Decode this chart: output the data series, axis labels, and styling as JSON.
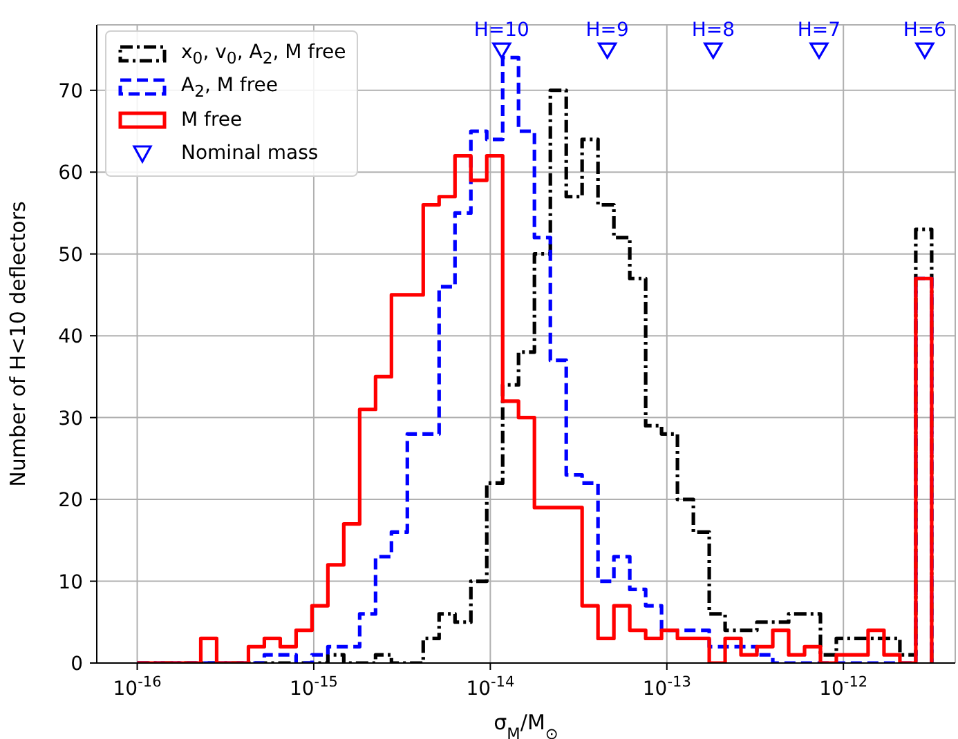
{
  "chart_data": {
    "type": "histogram",
    "xlabel": "σ$_{M}$/M$_{⊙}$",
    "ylabel": "Number of H<10 deflectors",
    "log": "x",
    "grid": true,
    "legend": "top left",
    "xlim": [
      5.9e-17,
      4.3e-12
    ],
    "xticks": [
      {
        "value": 1e-16,
        "label": "10$^{-16}$"
      },
      {
        "value": 1e-15,
        "label": "10$^{-15}$"
      },
      {
        "value": 1e-14,
        "label": "10$^{-14}$"
      },
      {
        "value": 1e-13,
        "label": "10$^{-13}$"
      },
      {
        "value": 1e-12,
        "label": "10$^{-12}$"
      }
    ],
    "ylim": [
      0,
      78
    ],
    "yticks": [
      0,
      10,
      20,
      30,
      40,
      50,
      60,
      70
    ],
    "bins": [
      1e-16,
      1.23e-16,
      1.514e-16,
      1.862e-16,
      2.291e-16,
      2.818e-16,
      3.467e-16,
      4.266e-16,
      5.248e-16,
      6.457e-16,
      7.943e-16,
      9.772e-16,
      1.202e-15,
      1.479e-15,
      1.82e-15,
      2.239e-15,
      2.754e-15,
      3.388e-15,
      4.169e-15,
      5.129e-15,
      6.31e-15,
      7.762e-15,
      9.55e-15,
      1.175e-14,
      1.445e-14,
      1.778e-14,
      2.188e-14,
      2.692e-14,
      3.311e-14,
      4.074e-14,
      5.012e-14,
      6.166e-14,
      7.586e-14,
      9.333e-14,
      1.148e-13,
      1.413e-13,
      1.738e-13,
      2.138e-13,
      2.63e-13,
      3.236e-13,
      3.981e-13,
      4.898e-13,
      6.026e-13,
      7.413e-13,
      9.12e-13,
      1.122e-12,
      1.38e-12,
      1.698e-12,
      2.089e-12,
      2.57e-12,
      3.162e-12
    ],
    "series": [
      {
        "name": "x$_{0}$, v$_{0}$, A$_{2}$, M free",
        "color": "#000000",
        "line_style": "dashdot",
        "values": [
          0,
          0,
          0,
          0,
          0,
          0,
          0,
          0,
          0,
          0,
          0,
          0,
          1,
          0,
          0,
          1,
          0,
          0,
          3,
          6,
          5,
          10,
          22,
          34,
          38,
          50,
          70,
          57,
          64,
          56,
          52,
          47,
          29,
          28,
          20,
          16,
          6,
          4,
          4,
          5,
          5,
          6,
          6,
          1,
          3,
          3,
          3,
          3,
          1,
          53
        ]
      },
      {
        "name": "A$_{2}$, M free",
        "color": "#0000ff",
        "line_style": "dashed",
        "values": [
          0,
          0,
          0,
          0,
          0,
          0,
          0,
          0,
          1,
          1,
          0,
          1,
          2,
          2,
          6,
          13,
          16,
          28,
          28,
          46,
          55,
          65,
          64,
          74,
          65,
          52,
          37,
          23,
          22,
          10,
          13,
          9,
          7,
          4,
          4,
          4,
          2,
          2,
          2,
          1,
          0,
          0,
          0,
          0,
          0,
          0,
          0,
          0,
          0,
          47
        ]
      },
      {
        "name": "M free",
        "color": "#ff0000",
        "line_style": "solid",
        "values": [
          0,
          0,
          0,
          0,
          3,
          0,
          0,
          2,
          3,
          2,
          4,
          7,
          12,
          17,
          31,
          35,
          45,
          45,
          56,
          57,
          62,
          59,
          62,
          32,
          30,
          19,
          19,
          19,
          7,
          3,
          7,
          4,
          3,
          4,
          3,
          3,
          0,
          3,
          1,
          2,
          4,
          1,
          2,
          0,
          1,
          1,
          4,
          1,
          0,
          47
        ]
      },
      {
        "name": "Nominal mass",
        "type": "scatter",
        "color": "#0000ff",
        "marker": "triangle",
        "x": [
          1.16e-14,
          4.6e-14,
          1.83e-13,
          7.28e-13,
          2.89e-12
        ],
        "values": [
          75,
          75,
          75,
          75,
          75
        ]
      }
    ],
    "annotations": [
      {
        "text": "H=10",
        "x": 1.16e-14,
        "y": 75
      },
      {
        "text": "H=9",
        "x": 4.6e-14,
        "y": 75
      },
      {
        "text": "H=8",
        "x": 1.83e-13,
        "y": 75
      },
      {
        "text": "H=7",
        "x": 7.28e-13,
        "y": 75
      },
      {
        "text": "H=6",
        "x": 2.89e-12,
        "y": 75
      }
    ]
  }
}
